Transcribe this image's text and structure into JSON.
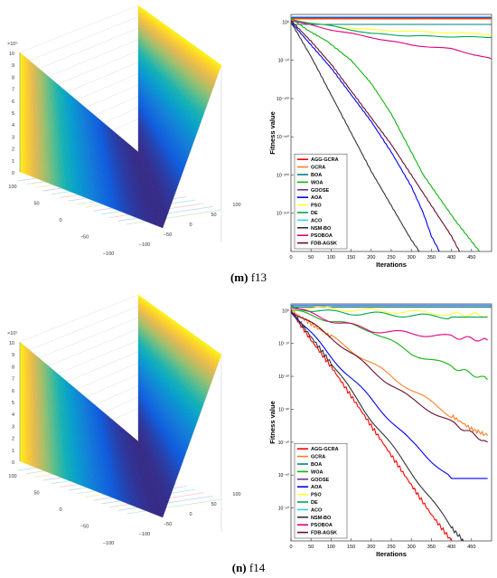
{
  "figures": [
    {
      "letter": "(m)",
      "name": "f13"
    },
    {
      "letter": "(n)",
      "name": "f14"
    }
  ],
  "legend_colors": [
    "#ff0000",
    "#ff7f27",
    "#00807f",
    "#12b312",
    "#7030a0",
    "#0000ff",
    "#ffff33",
    "#00a651",
    "#33ccff",
    "#333333",
    "#e0007f",
    "#6b0d2a"
  ],
  "chart_data": [
    {
      "type": "surface",
      "panel": "m",
      "zscale_label": "×10⁵",
      "zlim": [
        0,
        10
      ],
      "z_ticks": [
        "0",
        "1",
        "2",
        "3",
        "4",
        "5",
        "6",
        "7",
        "8",
        "9",
        "10"
      ],
      "x_ticks": [
        "100",
        "50",
        "0",
        "−50",
        "−100"
      ],
      "y_ticks": [
        "−100",
        "−50",
        "0",
        "50",
        "100"
      ],
      "colormap": "parula"
    },
    {
      "type": "line",
      "panel": "m",
      "xlabel": "Iterations",
      "ylabel": "Fitness value",
      "xlim": [
        0,
        500
      ],
      "x_ticks": [
        "0",
        "50",
        "100",
        "150",
        "200",
        "250",
        "300",
        "350",
        "400",
        "450"
      ],
      "y_scale": "log",
      "y_ticks": [
        "10⁰",
        "10⁻⁵⁰",
        "10⁻¹⁰⁰",
        "10⁻¹⁵⁰",
        "10⁻²⁰⁰",
        "10⁻²⁵⁰"
      ],
      "y_tick_exp": [
        0,
        -50,
        -100,
        -150,
        -200,
        -250
      ],
      "ylim_exp": [
        -300,
        10
      ],
      "legend": [
        "AGG-GCRA",
        "GCRA",
        "BOA",
        "WOA",
        "GOOSE",
        "AOA",
        "PSO",
        "DE",
        "ACO",
        "NSM-BO",
        "PSOBOA",
        "FDB-AGSK"
      ],
      "legend_position": "bottom-left",
      "series": [
        {
          "name": "AGG-GCRA",
          "x": [
            0,
            500
          ],
          "exp": [
            5,
            5
          ]
        },
        {
          "name": "GCRA",
          "x": [
            0,
            500
          ],
          "exp": [
            4,
            4
          ]
        },
        {
          "name": "BOA",
          "x": [
            0,
            500
          ],
          "exp": [
            -3,
            -3
          ]
        },
        {
          "name": "WOA",
          "x": [
            0,
            40,
            90,
            150,
            200,
            250,
            290,
            330,
            370,
            410,
            440,
            470
          ],
          "exp": [
            5,
            -10,
            -25,
            -50,
            -80,
            -120,
            -160,
            -200,
            -230,
            -260,
            -280,
            -300
          ]
        },
        {
          "name": "GOOSE",
          "x": [
            0,
            500
          ],
          "exp": [
            6,
            6
          ]
        },
        {
          "name": "AOA",
          "x": [
            0,
            50,
            100,
            150,
            200,
            250,
            300,
            330,
            350,
            370
          ],
          "exp": [
            0,
            -30,
            -60,
            -95,
            -130,
            -170,
            -215,
            -250,
            -280,
            -300
          ]
        },
        {
          "name": "PSO",
          "x": [
            0,
            100,
            200,
            300,
            400,
            500
          ],
          "exp": [
            2,
            -5,
            -10,
            -12,
            -14,
            -16
          ]
        },
        {
          "name": "DE",
          "x": [
            0,
            100,
            200,
            300,
            400,
            500
          ],
          "exp": [
            3,
            -5,
            -15,
            -18,
            -19,
            -20
          ]
        },
        {
          "name": "ACO",
          "x": [
            0,
            500
          ],
          "exp": [
            7,
            7
          ]
        },
        {
          "name": "NSM-BO",
          "x": [
            0,
            50,
            100,
            150,
            200,
            250,
            300,
            320
          ],
          "exp": [
            0,
            -45,
            -95,
            -145,
            -195,
            -240,
            -285,
            -300
          ]
        },
        {
          "name": "PSOBOA",
          "x": [
            0,
            100,
            200,
            300,
            400,
            500
          ],
          "exp": [
            2,
            -10,
            -20,
            -30,
            -35,
            -48
          ]
        },
        {
          "name": "FDB-AGSK",
          "x": [
            0,
            50,
            100,
            150,
            200,
            250,
            300,
            350,
            400,
            420
          ],
          "exp": [
            2,
            -25,
            -55,
            -90,
            -125,
            -160,
            -200,
            -240,
            -280,
            -300
          ]
        }
      ]
    },
    {
      "type": "surface",
      "panel": "n",
      "zscale_label": "×10⁵",
      "zlim": [
        0,
        10
      ],
      "z_ticks": [
        "0",
        "1",
        "2",
        "3",
        "4",
        "5",
        "6",
        "7",
        "8",
        "9",
        "10"
      ],
      "x_ticks": [
        "100",
        "50",
        "0",
        "−50",
        "−100"
      ],
      "y_ticks": [
        "−100",
        "−50",
        "0",
        "50",
        "100"
      ],
      "colormap": "parula"
    },
    {
      "type": "line",
      "panel": "n",
      "xlabel": "Iterations",
      "ylabel": "Fitness value",
      "xlim": [
        0,
        500
      ],
      "x_ticks": [
        "0",
        "50",
        "100",
        "150",
        "200",
        "250",
        "300",
        "350",
        "400",
        "450"
      ],
      "y_scale": "log",
      "y_ticks": [
        "10⁰",
        "10⁻¹⁰",
        "10⁻²⁰",
        "10⁻³⁰",
        "10⁻⁴⁰",
        "10⁻⁵⁰",
        "10⁻⁶⁰"
      ],
      "y_tick_exp": [
        0,
        -10,
        -20,
        -30,
        -40,
        -50,
        -60
      ],
      "ylim_exp": [
        -70,
        2
      ],
      "legend": [
        "AGG-GCRA",
        "GCRA",
        "BOA",
        "WOA",
        "GOOSE",
        "AOA",
        "PSO",
        "DE",
        "ACO",
        "NSM-BO",
        "PSOBOA",
        "FDB-AGSK"
      ],
      "legend_position": "bottom-left",
      "series": [
        {
          "name": "AGG-GCRA",
          "x": [
            0,
            50,
            100,
            150,
            200,
            250,
            300,
            350,
            400
          ],
          "exp": [
            0,
            -9,
            -17,
            -26,
            -35,
            -44,
            -53,
            -62,
            -70
          ]
        },
        {
          "name": "GCRA",
          "x": [
            0,
            50,
            100,
            200,
            300,
            400,
            450,
            490
          ],
          "exp": [
            0,
            -4,
            -8,
            -16,
            -24,
            -32,
            -36,
            -38
          ]
        },
        {
          "name": "BOA",
          "x": [
            0,
            500
          ],
          "exp": [
            1,
            1
          ]
        },
        {
          "name": "WOA",
          "x": [
            0,
            100,
            200,
            300,
            400,
            490
          ],
          "exp": [
            0,
            -3,
            -6,
            -13,
            -17,
            -21
          ]
        },
        {
          "name": "GOOSE",
          "x": [
            0,
            500
          ],
          "exp": [
            1.5,
            1.5
          ]
        },
        {
          "name": "AOA",
          "x": [
            0,
            100,
            200,
            300,
            400,
            450,
            490
          ],
          "exp": [
            0,
            -14,
            -27,
            -40,
            -51,
            -51,
            -51
          ]
        },
        {
          "name": "PSO",
          "x": [
            0,
            200,
            400,
            490
          ],
          "exp": [
            1,
            0,
            -1,
            -1.5
          ]
        },
        {
          "name": "DE",
          "x": [
            0,
            100,
            200,
            300,
            400,
            490
          ],
          "exp": [
            1,
            -0.5,
            -1,
            -1.5,
            -2,
            -2
          ]
        },
        {
          "name": "ACO",
          "x": [
            0,
            500
          ],
          "exp": [
            1.8,
            1.8
          ]
        },
        {
          "name": "NSM-BO",
          "x": [
            0,
            50,
            100,
            200,
            300,
            400,
            430
          ],
          "exp": [
            0,
            -8,
            -16,
            -33,
            -49,
            -66,
            -70
          ]
        },
        {
          "name": "PSOBOA",
          "x": [
            0,
            100,
            200,
            300,
            400,
            490
          ],
          "exp": [
            1,
            -3,
            -6,
            -7,
            -8,
            -9
          ]
        },
        {
          "name": "FDB-AGSK",
          "x": [
            0,
            100,
            200,
            300,
            400,
            490
          ],
          "exp": [
            0,
            -8,
            -18,
            -27,
            -34,
            -40
          ]
        }
      ]
    }
  ]
}
